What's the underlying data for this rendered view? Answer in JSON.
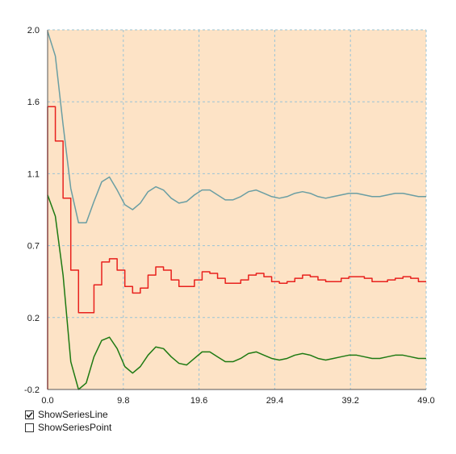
{
  "chart_data": {
    "type": "line",
    "x_ticks": [
      "0.0",
      "9.8",
      "19.6",
      "29.4",
      "39.2",
      "49.0"
    ],
    "y_ticks": [
      "-0.2",
      "0.2",
      "0.7",
      "1.1",
      "1.6",
      "2.0"
    ],
    "xlim": [
      0,
      49
    ],
    "ylim": [
      -0.2,
      2.0
    ],
    "grid": true,
    "background_color": "#FDE3C6",
    "grid_color": "#9AC3D6",
    "series": [
      {
        "color": "#6A9EA3",
        "style": "line",
        "x": [
          0,
          1,
          2,
          3,
          4,
          5,
          6,
          7,
          8,
          9,
          10,
          11,
          12,
          13,
          14,
          15,
          16,
          17,
          18,
          19,
          20,
          21,
          22,
          23,
          24,
          25,
          26,
          27,
          28,
          29,
          30,
          31,
          32,
          33,
          34,
          35,
          36,
          37,
          38,
          39,
          40,
          41,
          42,
          43,
          44,
          45,
          46,
          47,
          48,
          49
        ],
        "y": [
          1.99,
          1.84,
          1.42,
          1.03,
          0.82,
          0.82,
          0.95,
          1.07,
          1.1,
          1.02,
          0.93,
          0.9,
          0.94,
          1.01,
          1.04,
          1.02,
          0.97,
          0.94,
          0.95,
          0.99,
          1.02,
          1.02,
          0.99,
          0.96,
          0.96,
          0.98,
          1.01,
          1.02,
          1.0,
          0.98,
          0.97,
          0.98,
          1.0,
          1.01,
          1.0,
          0.98,
          0.97,
          0.98,
          0.99,
          1.0,
          1.0,
          0.99,
          0.98,
          0.98,
          0.99,
          1.0,
          1.0,
          0.99,
          0.98,
          0.98
        ]
      },
      {
        "color": "#E8211D",
        "style": "step",
        "x": [
          0,
          1,
          2,
          3,
          4,
          5,
          6,
          7,
          8,
          9,
          10,
          11,
          12,
          13,
          14,
          15,
          16,
          17,
          18,
          19,
          20,
          21,
          22,
          23,
          24,
          25,
          26,
          27,
          28,
          29,
          30,
          31,
          32,
          33,
          34,
          35,
          36,
          37,
          38,
          39,
          40,
          41,
          42,
          43,
          44,
          45,
          46,
          47,
          48,
          49
        ],
        "y": [
          1.53,
          1.32,
          0.97,
          0.53,
          0.27,
          0.27,
          0.44,
          0.58,
          0.6,
          0.53,
          0.43,
          0.39,
          0.42,
          0.5,
          0.55,
          0.53,
          0.47,
          0.43,
          0.43,
          0.47,
          0.52,
          0.51,
          0.48,
          0.45,
          0.45,
          0.47,
          0.5,
          0.51,
          0.49,
          0.46,
          0.45,
          0.46,
          0.48,
          0.5,
          0.49,
          0.47,
          0.46,
          0.46,
          0.48,
          0.49,
          0.49,
          0.48,
          0.46,
          0.46,
          0.47,
          0.48,
          0.49,
          0.48,
          0.46,
          0.46
        ]
      },
      {
        "color": "#1E7A12",
        "style": "line",
        "x": [
          0,
          1,
          2,
          3,
          4,
          5,
          6,
          7,
          8,
          9,
          10,
          11,
          12,
          13,
          14,
          15,
          16,
          17,
          18,
          19,
          20,
          21,
          22,
          23,
          24,
          25,
          26,
          27,
          28,
          29,
          30,
          31,
          32,
          33,
          34,
          35,
          36,
          37,
          38,
          39,
          40,
          41,
          42,
          43,
          44,
          45,
          46,
          47,
          48,
          49
        ],
        "y": [
          0.99,
          0.86,
          0.5,
          -0.03,
          -0.2,
          -0.16,
          0.0,
          0.1,
          0.12,
          0.05,
          -0.06,
          -0.1,
          -0.06,
          0.01,
          0.06,
          0.05,
          0.0,
          -0.04,
          -0.05,
          -0.01,
          0.03,
          0.03,
          0.0,
          -0.03,
          -0.03,
          -0.01,
          0.02,
          0.03,
          0.01,
          -0.01,
          -0.02,
          -0.01,
          0.01,
          0.02,
          0.01,
          -0.01,
          -0.02,
          -0.01,
          0.0,
          0.01,
          0.01,
          0.0,
          -0.01,
          -0.01,
          0.0,
          0.01,
          0.01,
          0.0,
          -0.01,
          -0.01
        ]
      }
    ]
  },
  "options": [
    {
      "label": "ShowSeriesLine",
      "checked": true
    },
    {
      "label": "ShowSeriesPoint",
      "checked": false
    }
  ]
}
